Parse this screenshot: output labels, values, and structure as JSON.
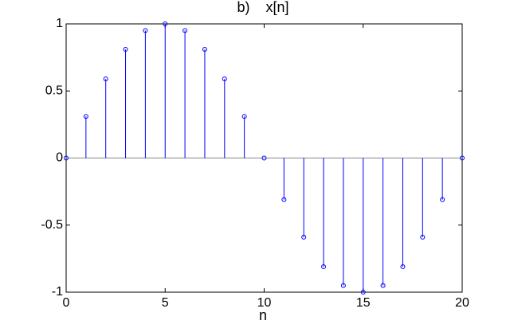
{
  "chart_data": {
    "type": "stem",
    "title": "b)    x[n]",
    "xlabel": "n",
    "x": [
      0,
      1,
      2,
      3,
      4,
      5,
      6,
      7,
      8,
      9,
      10,
      11,
      12,
      13,
      14,
      15,
      16,
      17,
      18,
      19,
      20
    ],
    "series": [
      {
        "name": "x[n]",
        "color": "#0000ff",
        "values": [
          0,
          0.31,
          0.59,
          0.81,
          0.95,
          1,
          0.95,
          0.81,
          0.59,
          0.31,
          0,
          -0.31,
          -0.59,
          -0.81,
          -0.95,
          -1,
          -0.95,
          -0.81,
          -0.59,
          -0.31,
          0
        ]
      }
    ],
    "xlim": [
      0,
      20
    ],
    "xticks": [
      0,
      5,
      10,
      15,
      20
    ],
    "ylim": [
      -1,
      1
    ],
    "yticks": [
      -1,
      -0.5,
      0,
      0.5,
      1
    ]
  }
}
